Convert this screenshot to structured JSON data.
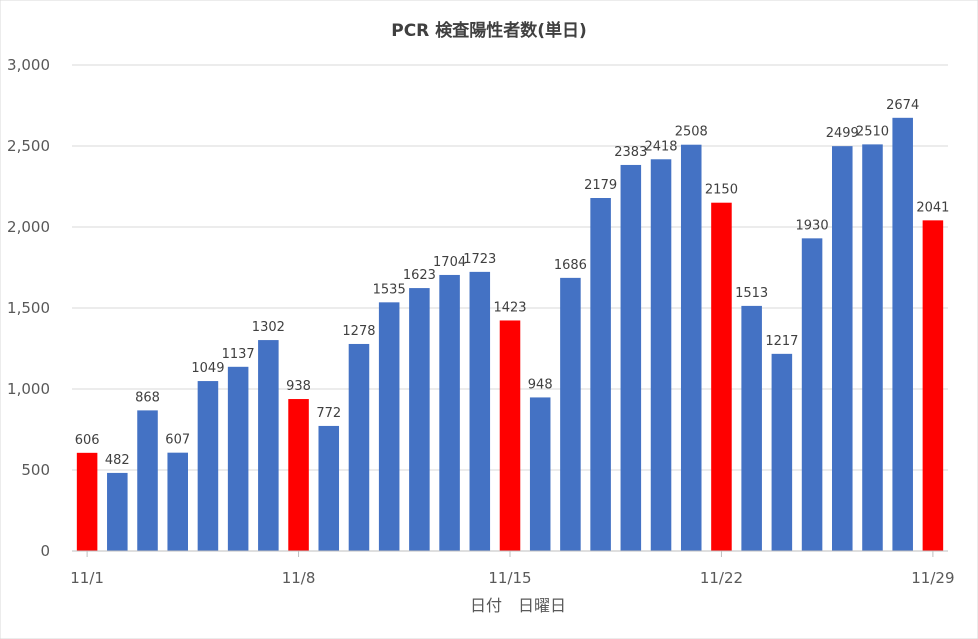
{
  "chart_data": {
    "type": "bar",
    "title": "PCR 検査陽性者数(単日)",
    "xlabel": "日付　日曜日",
    "ylabel": "",
    "ylim": [
      0,
      3000
    ],
    "y_ticks": [
      "0",
      "500",
      "1,000",
      "1,500",
      "2,000",
      "2,500",
      "3,000"
    ],
    "x_tick_labels": [
      {
        "index": 0,
        "label": "11/1"
      },
      {
        "index": 7,
        "label": "11/8"
      },
      {
        "index": 14,
        "label": "11/15"
      },
      {
        "index": 21,
        "label": "11/22"
      },
      {
        "index": 28,
        "label": "11/29"
      }
    ],
    "values": [
      606,
      482,
      868,
      607,
      1049,
      1137,
      1302,
      938,
      772,
      1278,
      1535,
      1623,
      1704,
      1723,
      1423,
      948,
      1686,
      2179,
      2383,
      2418,
      2508,
      2150,
      1513,
      1217,
      1930,
      2499,
      2510,
      2674,
      2041
    ],
    "highlight_indices": [
      0,
      7,
      14,
      21,
      28
    ],
    "colors": {
      "normal": "#4472c4",
      "highlight": "#ff0000",
      "grid": "#d9d9d9"
    }
  }
}
